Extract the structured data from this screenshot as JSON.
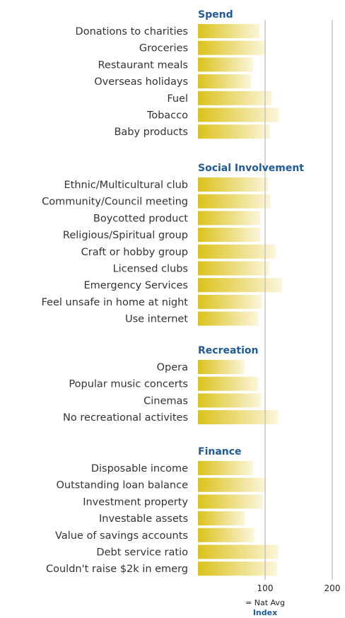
{
  "chart_data": {
    "type": "bar",
    "orientation": "horizontal",
    "xlim": [
      0,
      200
    ],
    "xticks": [
      "100",
      "200"
    ],
    "reference_note": "= Nat Avg",
    "xlabel": "Index",
    "colors": {
      "bar_start": "#dcc21c",
      "bar_end": "#fbf6dd",
      "section": "#1f5a99",
      "gridline": "#bbbbbb"
    },
    "sections": [
      {
        "title": "Spend",
        "categories": [
          "Donations to charities",
          "Groceries",
          "Restaurant meals",
          "Overseas holidays",
          "Fuel",
          "Tobacco",
          "Baby products"
        ],
        "values": [
          92,
          101,
          82,
          79,
          110,
          121,
          107
        ]
      },
      {
        "title": "Social Involvement",
        "categories": [
          "Ethnic/Multicultural club",
          "Community/Council meeting",
          "Boycotted product",
          "Religious/Spiritual group",
          "Craft or hobby group",
          "Licensed clubs",
          "Emergency Services",
          "Feel unsafe in home at night",
          "Use internet"
        ],
        "values": [
          105,
          108,
          93,
          93,
          116,
          106,
          125,
          95,
          90
        ]
      },
      {
        "title": "Recreation",
        "categories": [
          "Opera",
          "Popular music concerts",
          "Cinemas",
          "No recreational activites"
        ],
        "values": [
          69,
          90,
          94,
          119
        ]
      },
      {
        "title": "Finance",
        "categories": [
          "Disposable income",
          "Outstanding loan balance",
          "Investment property",
          "Investable assets",
          "Value of savings accounts",
          "Debt service ratio",
          "Couldn't raise $2k in emerg"
        ],
        "values": [
          82,
          101,
          97,
          70,
          84,
          120,
          118
        ]
      }
    ]
  }
}
